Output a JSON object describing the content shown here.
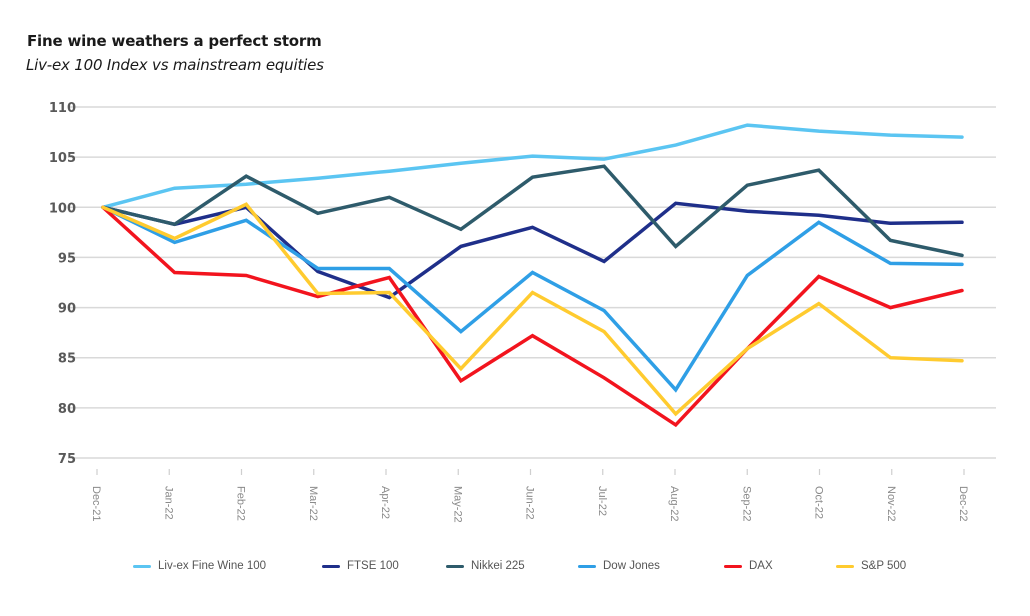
{
  "chart_data": {
    "type": "line",
    "title": "Fine wine weathers a perfect storm",
    "subtitle": "Liv-ex 100 Index vs mainstream equities",
    "xlabel": "",
    "ylabel": "",
    "ylim": [
      75,
      110
    ],
    "yticks": [
      "75",
      "80",
      "85",
      "90",
      "95",
      "100",
      "105",
      "110"
    ],
    "ytick_values": [
      75,
      80,
      85,
      90,
      95,
      100,
      105,
      110
    ],
    "grid": true,
    "legend_position": "bottom",
    "categories": [
      "Dec-21",
      "Jan-22",
      "Feb-22",
      "Mar-22",
      "Apr-22",
      "May-22",
      "Jun-22",
      "Jul-22",
      "Aug-22",
      "Sep-22",
      "Oct-22",
      "Nov-22",
      "Dec-22"
    ],
    "series": [
      {
        "name": "Liv-ex Fine Wine 100",
        "color": "#5bc5f2",
        "values": [
          100,
          101.9,
          102.3,
          102.9,
          103.6,
          104.4,
          105.1,
          104.8,
          106.2,
          108.2,
          107.6,
          107.2,
          107.0
        ]
      },
      {
        "name": "FTSE 100",
        "color": "#1f2f8a",
        "values": [
          100,
          98.3,
          100.0,
          93.6,
          91.0,
          96.1,
          98.0,
          94.6,
          100.4,
          99.6,
          99.2,
          98.4,
          98.5
        ]
      },
      {
        "name": "Nikkei 225",
        "color": "#2e5b6b",
        "values": [
          100,
          98.3,
          103.1,
          99.4,
          101.0,
          97.8,
          103.0,
          104.1,
          96.1,
          102.2,
          103.7,
          96.7,
          95.2
        ]
      },
      {
        "name": "Dow Jones",
        "color": "#2f9fe6",
        "values": [
          100,
          96.5,
          98.7,
          93.9,
          93.9,
          87.6,
          93.5,
          89.7,
          81.8,
          93.2,
          98.5,
          94.4,
          94.3
        ]
      },
      {
        "name": "DAX",
        "color": "#f2141e",
        "values": [
          100,
          93.5,
          93.2,
          91.1,
          93.0,
          82.7,
          87.2,
          83.0,
          78.3,
          85.9,
          93.1,
          90.0,
          91.7
        ]
      },
      {
        "name": "S&P 500",
        "color": "#ffcb2f",
        "values": [
          100,
          96.9,
          100.3,
          91.4,
          91.5,
          83.9,
          91.5,
          87.6,
          79.4,
          85.9,
          90.4,
          85.0,
          84.7
        ]
      }
    ]
  }
}
